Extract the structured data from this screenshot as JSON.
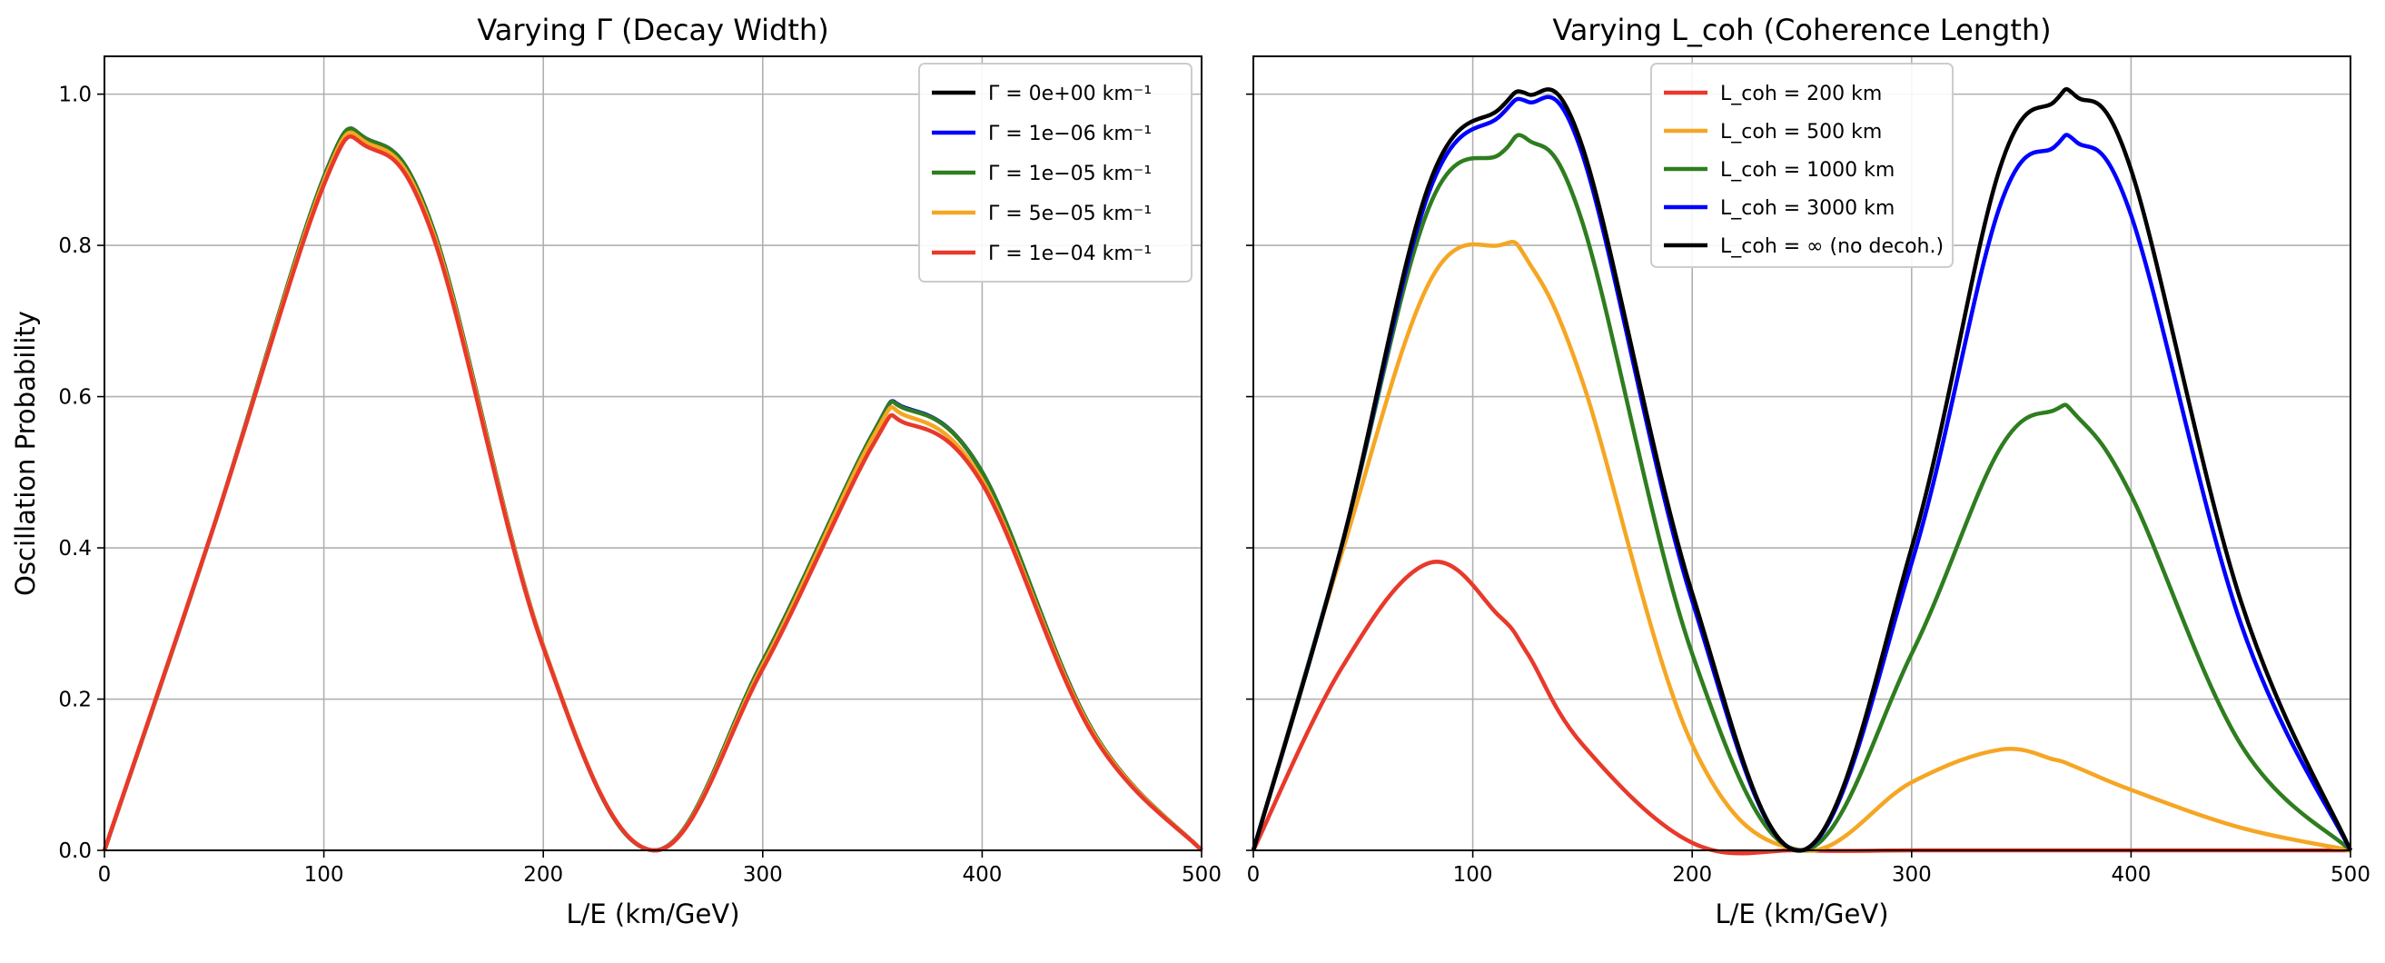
{
  "chart_data": [
    {
      "type": "line",
      "title": "Varying Γ (Decay Width)",
      "xlabel": "L/E (km/GeV)",
      "ylabel": "Oscillation Probability",
      "xlim": [
        0,
        500
      ],
      "ylim": [
        0,
        1.05
      ],
      "xticks": [
        "0",
        "100",
        "200",
        "300",
        "400",
        "500"
      ],
      "yticks": [
        "0.0",
        "0.2",
        "0.4",
        "0.6",
        "0.8",
        "1.0"
      ],
      "grid": true,
      "legend_position": "top-right",
      "x": [
        0,
        50,
        100,
        120,
        150,
        200,
        250,
        300,
        350,
        365,
        400,
        450,
        500
      ],
      "series": [
        {
          "name": "Γ = 0e+00 km⁻¹",
          "color": "#000000",
          "values": [
            0,
            0.43,
            0.89,
            0.94,
            0.82,
            0.27,
            0.0,
            0.25,
            0.55,
            0.585,
            0.5,
            0.16,
            0.0
          ]
        },
        {
          "name": "Γ = 1e−06 km⁻¹",
          "color": "#0000ff",
          "values": [
            0,
            0.43,
            0.89,
            0.94,
            0.82,
            0.27,
            0.0,
            0.25,
            0.55,
            0.585,
            0.5,
            0.16,
            0.0
          ]
        },
        {
          "name": "Γ = 1e−05 km⁻¹",
          "color": "#2e7d1f",
          "values": [
            0,
            0.43,
            0.89,
            0.94,
            0.82,
            0.27,
            0.0,
            0.25,
            0.55,
            0.584,
            0.5,
            0.16,
            0.0
          ]
        },
        {
          "name": "Γ = 5e−05 km⁻¹",
          "color": "#f5a623",
          "values": [
            0,
            0.43,
            0.885,
            0.935,
            0.815,
            0.27,
            0.0,
            0.245,
            0.545,
            0.575,
            0.49,
            0.158,
            0.0
          ]
        },
        {
          "name": "Γ = 1e−04 km⁻¹",
          "color": "#e8392a",
          "values": [
            0,
            0.43,
            0.88,
            0.93,
            0.81,
            0.268,
            0.0,
            0.24,
            0.535,
            0.565,
            0.485,
            0.155,
            0.0
          ]
        }
      ]
    },
    {
      "type": "line",
      "title": "Varying L_coh (Coherence Length)",
      "xlabel": "L/E (km/GeV)",
      "ylabel": "",
      "xlim": [
        0,
        500
      ],
      "ylim": [
        0,
        1.05
      ],
      "xticks": [
        "0",
        "100",
        "200",
        "300",
        "400",
        "500"
      ],
      "yticks": [
        "0.0",
        "0.2",
        "0.4",
        "0.6",
        "0.8",
        "1.0"
      ],
      "grid": true,
      "legend_position": "top-center",
      "x": [
        0,
        40,
        80,
        112,
        125,
        150,
        200,
        250,
        300,
        340,
        365,
        375,
        400,
        450,
        500
      ],
      "series": [
        {
          "name": "L_coh = 200 km",
          "color": "#e8392a",
          "values": [
            0,
            0.24,
            0.38,
            0.31,
            0.26,
            0.14,
            0.01,
            0.0,
            0.0,
            0.0,
            0.0,
            0.0,
            0.0,
            0.0,
            0.0
          ]
        },
        {
          "name": "L_coh = 500 km",
          "color": "#f5a623",
          "values": [
            0,
            0.39,
            0.75,
            0.8,
            0.78,
            0.62,
            0.14,
            0.0,
            0.09,
            0.133,
            0.12,
            0.11,
            0.08,
            0.03,
            0.0
          ]
        },
        {
          "name": "L_coh = 1000 km",
          "color": "#2e7d1f",
          "values": [
            0,
            0.4,
            0.85,
            0.92,
            0.94,
            0.83,
            0.26,
            0.0,
            0.26,
            0.53,
            0.582,
            0.575,
            0.47,
            0.14,
            0.0
          ]
        },
        {
          "name": "L_coh = 3000 km",
          "color": "#0000ff",
          "values": [
            0,
            0.4,
            0.87,
            0.97,
            0.99,
            0.92,
            0.33,
            0.0,
            0.38,
            0.85,
            0.93,
            0.937,
            0.84,
            0.3,
            0.0
          ]
        },
        {
          "name": "L_coh = ∞ (no decoh.)",
          "color": "#000000",
          "values": [
            0,
            0.4,
            0.88,
            0.98,
            1.0,
            0.93,
            0.34,
            0.0,
            0.4,
            0.9,
            0.99,
            0.997,
            0.9,
            0.33,
            0.0
          ]
        }
      ]
    }
  ]
}
